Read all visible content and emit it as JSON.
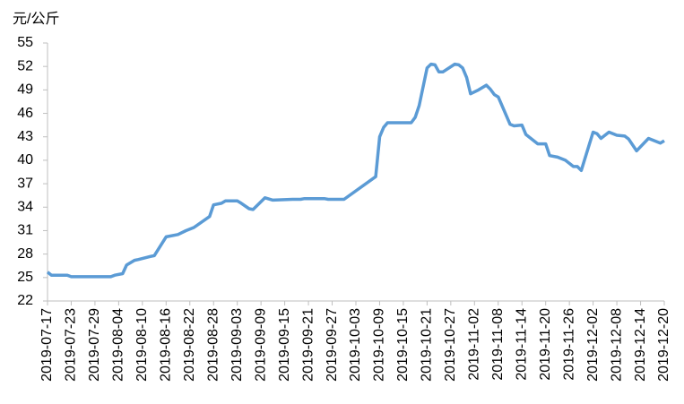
{
  "chart_data": {
    "type": "line",
    "y_label": "元/公斤",
    "x": [
      "2019-07-17",
      "2019-07-18",
      "2019-07-22",
      "2019-07-23",
      "2019-08-02",
      "2019-08-03",
      "2019-08-05",
      "2019-08-06",
      "2019-08-08",
      "2019-08-09",
      "2019-08-12",
      "2019-08-13",
      "2019-08-16",
      "2019-08-19",
      "2019-08-21",
      "2019-08-23",
      "2019-08-27",
      "2019-08-28",
      "2019-08-30",
      "2019-08-31",
      "2019-09-03",
      "2019-09-04",
      "2019-09-06",
      "2019-09-07",
      "2019-09-10",
      "2019-09-12",
      "2019-09-17",
      "2019-09-19",
      "2019-09-20",
      "2019-09-25",
      "2019-09-26",
      "2019-09-30",
      "2019-10-08",
      "2019-10-09",
      "2019-10-10",
      "2019-10-11",
      "2019-10-17",
      "2019-10-18",
      "2019-10-19",
      "2019-10-21",
      "2019-10-22",
      "2019-10-23",
      "2019-10-24",
      "2019-10-25",
      "2019-10-28",
      "2019-10-29",
      "2019-10-30",
      "2019-10-31",
      "2019-11-01",
      "2019-11-03",
      "2019-11-05",
      "2019-11-06",
      "2019-11-07",
      "2019-11-08",
      "2019-11-11",
      "2019-11-12",
      "2019-11-14",
      "2019-11-15",
      "2019-11-18",
      "2019-11-20",
      "2019-11-21",
      "2019-11-23",
      "2019-11-25",
      "2019-11-27",
      "2019-11-28",
      "2019-11-29",
      "2019-12-02",
      "2019-12-03",
      "2019-12-04",
      "2019-12-06",
      "2019-12-08",
      "2019-12-10",
      "2019-12-11",
      "2019-12-13",
      "2019-12-16",
      "2019-12-17",
      "2019-12-19",
      "2019-12-20"
    ],
    "series": [
      {
        "color": "#5b9bd5",
        "values": [
          25.7,
          25.3,
          25.3,
          25.1,
          25.1,
          25.3,
          25.5,
          26.6,
          27.2,
          27.3,
          27.7,
          27.8,
          30.2,
          30.5,
          31.0,
          31.4,
          32.8,
          34.3,
          34.5,
          34.8,
          34.8,
          34.5,
          33.8,
          33.7,
          35.2,
          34.9,
          35.0,
          35.0,
          35.1,
          35.1,
          35.0,
          35.0,
          37.9,
          43.0,
          44.2,
          44.8,
          44.8,
          45.5,
          47.0,
          51.8,
          52.3,
          52.2,
          51.3,
          51.3,
          52.3,
          52.2,
          51.8,
          50.6,
          48.5,
          49.0,
          49.6,
          49.1,
          48.4,
          48.1,
          44.6,
          44.4,
          44.5,
          43.3,
          42.1,
          42.1,
          40.6,
          40.4,
          40.0,
          39.2,
          39.2,
          38.7,
          43.6,
          43.4,
          42.8,
          43.6,
          43.2,
          43.1,
          42.7,
          41.2,
          42.8,
          42.6,
          42.2,
          42.5
        ]
      }
    ],
    "xlim": [
      "2019-07-17",
      "2019-12-20"
    ],
    "xticks": [
      "2019-07-17",
      "2019-07-23",
      "2019-07-29",
      "2019-08-04",
      "2019-08-10",
      "2019-08-16",
      "2019-08-22",
      "2019-08-28",
      "2019-09-03",
      "2019-09-09",
      "2019-09-15",
      "2019-09-21",
      "2019-09-27",
      "2019-10-03",
      "2019-10-09",
      "2019-10-15",
      "2019-10-21",
      "2019-10-27",
      "2019-11-02",
      "2019-11-08",
      "2019-11-14",
      "2019-11-20",
      "2019-11-26",
      "2019-12-02",
      "2019-12-08",
      "2019-12-14",
      "2019-12-20"
    ],
    "ylim": [
      22,
      55
    ],
    "yticks": [
      22,
      25,
      28,
      31,
      34,
      37,
      40,
      43,
      46,
      49,
      52,
      55
    ],
    "grid": false
  }
}
